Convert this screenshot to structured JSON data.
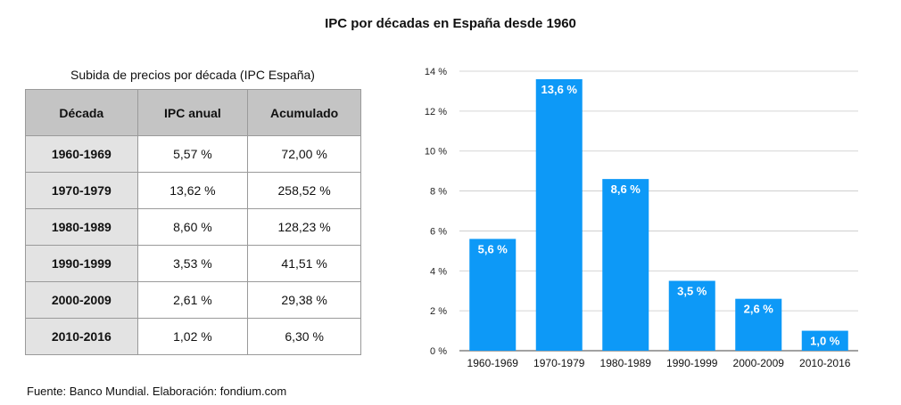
{
  "title": "IPC por décadas en España desde 1960",
  "table": {
    "caption": "Subida de precios por década (IPC España)",
    "headers": [
      "Década",
      "IPC anual",
      "Acumulado"
    ],
    "rows": [
      [
        "1960-1969",
        "5,57 %",
        "72,00 %"
      ],
      [
        "1970-1979",
        "13,62 %",
        "258,52 %"
      ],
      [
        "1980-1989",
        "8,60 %",
        "128,23 %"
      ],
      [
        "1990-1999",
        "3,53 %",
        "41,51 %"
      ],
      [
        "2000-2009",
        "2,61 %",
        "29,38 %"
      ],
      [
        "2010-2016",
        "1,02 %",
        "6,30 %"
      ]
    ]
  },
  "source": "Fuente: Banco Mundial. Elaboración: fondium.com",
  "chart_data": {
    "type": "bar",
    "title": "IPC por décadas en España desde 1960",
    "categories": [
      "1960-1969",
      "1970-1979",
      "1980-1989",
      "1990-1999",
      "2000-2009",
      "2010-2016"
    ],
    "values": [
      5.6,
      13.6,
      8.6,
      3.5,
      2.6,
      1.0
    ],
    "data_labels": [
      "5,6 %",
      "13,6 %",
      "8,6 %",
      "3,5 %",
      "2,6 %",
      "1,0 %"
    ],
    "yticks": [
      "0 %",
      "2 %",
      "4 %",
      "6 %",
      "8 %",
      "10 %",
      "12 %",
      "14 %"
    ],
    "ylim": [
      0,
      14
    ],
    "xlabel": "",
    "ylabel": "",
    "grid": true,
    "bar_color": "#0d99f7"
  }
}
